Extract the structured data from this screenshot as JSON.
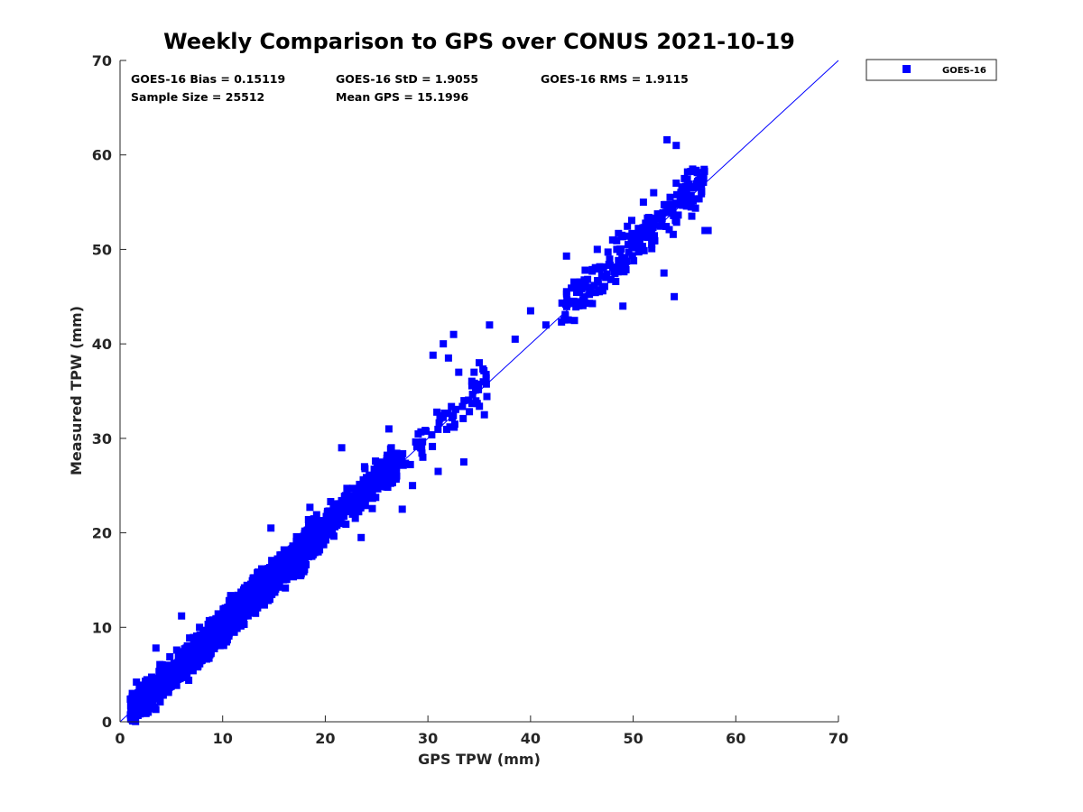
{
  "chart_data": {
    "type": "scatter",
    "title": "Weekly Comparison to GPS over CONUS 2021-10-19",
    "xlabel": "GPS TPW (mm)",
    "ylabel": "Measured TPW (mm)",
    "xlim": [
      0,
      70
    ],
    "ylim": [
      0,
      70
    ],
    "xticks": [
      0,
      10,
      20,
      30,
      40,
      50,
      60,
      70
    ],
    "yticks": [
      0,
      10,
      20,
      30,
      40,
      50,
      60,
      70
    ],
    "x_tick_labels": [
      "0",
      "10",
      "20",
      "30",
      "40",
      "50",
      "60",
      "70"
    ],
    "y_tick_labels": [
      "0",
      "10",
      "20",
      "30",
      "40",
      "50",
      "60",
      "70"
    ],
    "grid": false,
    "legend": {
      "position": "outside-top-right",
      "entries": [
        "GOES-16"
      ]
    },
    "reference_line": {
      "from": [
        0,
        0
      ],
      "to": [
        70,
        70
      ]
    },
    "series": [
      {
        "name": "GOES-16",
        "color": "#0000ff",
        "marker": "square",
        "clusters": [
          {
            "x_range": [
              1,
              12
            ],
            "slope": 1.0,
            "offset": 0.0,
            "spread": 1.6,
            "count": 1100
          },
          {
            "x_range": [
              10,
              19
            ],
            "slope": 1.0,
            "offset": 0.3,
            "spread": 1.8,
            "count": 700
          },
          {
            "x_range": [
              18,
              27
            ],
            "slope": 1.0,
            "offset": 0.5,
            "spread": 1.8,
            "count": 420
          },
          {
            "x_range": [
              26,
              36
            ],
            "slope": 1.0,
            "offset": 0.0,
            "spread": 2.2,
            "count": 70
          },
          {
            "x_range": [
              43,
              57
            ],
            "slope": 1.0,
            "offset": 0.5,
            "spread": 2.2,
            "count": 220
          }
        ],
        "points": [
          [
            1.0,
            2.4
          ],
          [
            1.2,
            3.0
          ],
          [
            1.6,
            4.2
          ],
          [
            3.5,
            7.8
          ],
          [
            6.0,
            11.2
          ],
          [
            14.7,
            20.5
          ],
          [
            18.5,
            22.7
          ],
          [
            21.6,
            29.0
          ],
          [
            23.5,
            19.5
          ],
          [
            26.2,
            31.0
          ],
          [
            27.5,
            22.5
          ],
          [
            28.5,
            25.0
          ],
          [
            29.5,
            28.0
          ],
          [
            30.5,
            38.8
          ],
          [
            31.0,
            26.5
          ],
          [
            31.5,
            40.0
          ],
          [
            32.0,
            38.5
          ],
          [
            32.5,
            41.0
          ],
          [
            33.0,
            37.0
          ],
          [
            33.5,
            27.5
          ],
          [
            34.5,
            37.0
          ],
          [
            35.0,
            38.0
          ],
          [
            35.5,
            32.5
          ],
          [
            36.0,
            42.0
          ],
          [
            38.5,
            40.5
          ],
          [
            40.0,
            43.5
          ],
          [
            41.5,
            42.0
          ],
          [
            43.5,
            49.3
          ],
          [
            44.5,
            45.5
          ],
          [
            46.5,
            50.0
          ],
          [
            48.0,
            51.0
          ],
          [
            49.0,
            44.0
          ],
          [
            51.0,
            55.0
          ],
          [
            52.0,
            56.0
          ],
          [
            52.5,
            53.5
          ],
          [
            53.3,
            61.6
          ],
          [
            54.2,
            61.0
          ],
          [
            55.0,
            57.5
          ],
          [
            55.3,
            58.2
          ],
          [
            55.8,
            58.5
          ],
          [
            57.3,
            52.0
          ],
          [
            57.0,
            52.0
          ],
          [
            54.0,
            45.0
          ],
          [
            53.0,
            47.5
          ]
        ]
      }
    ],
    "statistics": {
      "bias": "GOES-16 Bias = 0.15119",
      "std": "GOES-16 StD = 1.9055",
      "rms": "GOES-16 RMS = 1.9115",
      "sample_size": "Sample Size = 25512",
      "mean_gps": "Mean GPS = 15.1996"
    }
  }
}
